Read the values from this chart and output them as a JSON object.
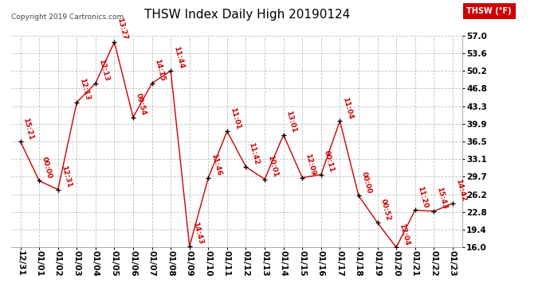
{
  "title": "THSW Index Daily High 20190124",
  "copyright": "Copyright 2019 Cartronics.com",
  "legend_label": "THSW (°F)",
  "x_labels": [
    "12/31",
    "01/01",
    "01/02",
    "01/03",
    "01/04",
    "01/05",
    "01/06",
    "01/07",
    "01/08",
    "01/09",
    "01/10",
    "01/11",
    "01/12",
    "01/13",
    "01/14",
    "01/15",
    "01/16",
    "01/17",
    "01/18",
    "01/19",
    "01/20",
    "01/21",
    "01/22",
    "01/23"
  ],
  "y_values": [
    36.5,
    28.9,
    27.2,
    44.1,
    47.8,
    55.8,
    41.2,
    47.8,
    50.2,
    16.2,
    29.5,
    38.5,
    31.6,
    29.2,
    37.8,
    29.5,
    30.1,
    40.5,
    26.0,
    20.8,
    16.0,
    23.2,
    23.0,
    24.5
  ],
  "time_labels": [
    "15:21",
    "00:00",
    "12:31",
    "12:13",
    "12:13",
    "13:27",
    "09:54",
    "14:15",
    "11:44",
    "14:43",
    "11:46",
    "11:01",
    "11:42",
    "10:01",
    "13:01",
    "12:09",
    "00:11",
    "11:04",
    "00:00",
    "00:52",
    "12:04",
    "11:20",
    "15:43",
    "14:42"
  ],
  "y_ticks": [
    16.0,
    19.4,
    22.8,
    26.2,
    29.7,
    33.1,
    36.5,
    39.9,
    43.3,
    46.8,
    50.2,
    53.6,
    57.0
  ],
  "ylim": [
    16.0,
    57.0
  ],
  "line_color": "#cc0000",
  "marker_color": "#000000",
  "background_color": "#ffffff",
  "grid_color": "#b0b0b0",
  "title_fontsize": 11,
  "tick_fontsize": 7.5,
  "annotation_fontsize": 6.5,
  "copyright_fontsize": 6.5
}
